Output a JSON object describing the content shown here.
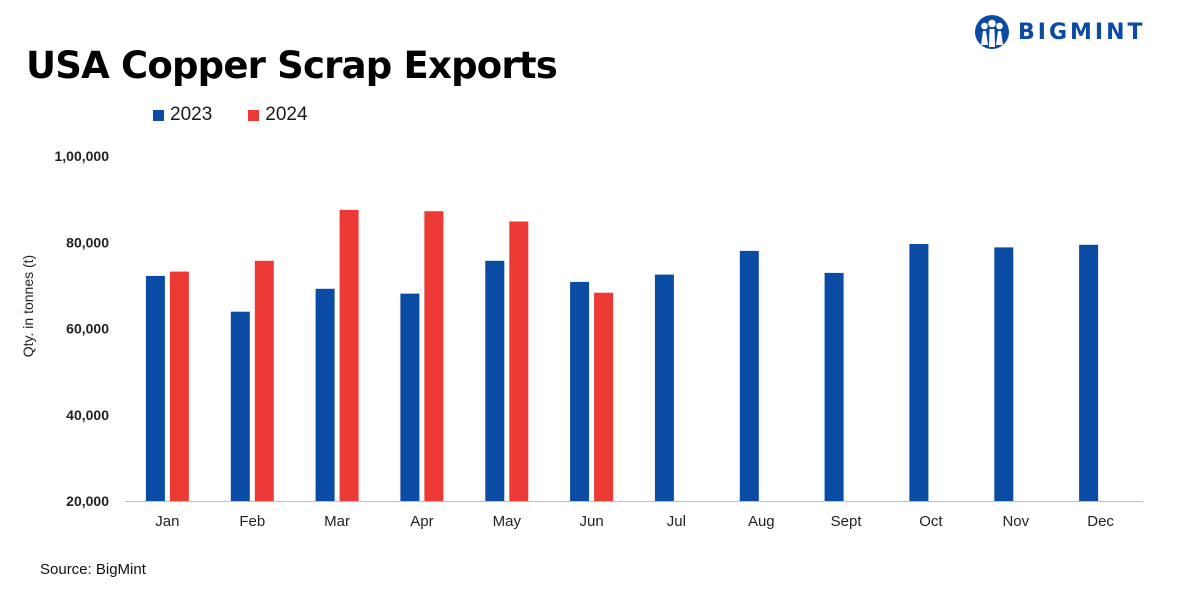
{
  "header": {
    "title": "USA Copper Scrap Exports",
    "logo_text": "BIGMINT",
    "logo_icon": "bigmint-logo-icon"
  },
  "footer": {
    "source": "Source: BigMint"
  },
  "colors": {
    "series_2023": "#0a4ba3",
    "series_2024": "#ee3a34",
    "axis": "#bfbfbf"
  },
  "chart_data": {
    "type": "bar",
    "title": "USA Copper Scrap Exports",
    "xlabel": "",
    "ylabel": "Qty. in tonnes (t)",
    "ylim": [
      20000,
      100000
    ],
    "yticks": [
      20000,
      40000,
      60000,
      80000,
      100000
    ],
    "ytick_labels": [
      "20,000",
      "40,000",
      "60,000",
      "80,000",
      "1,00,000"
    ],
    "grid": false,
    "legend_position": "top-left",
    "categories": [
      "Jan",
      "Feb",
      "Mar",
      "Apr",
      "May",
      "Jun",
      "Jul",
      "Aug",
      "Sept",
      "Oct",
      "Nov",
      "Dec"
    ],
    "series": [
      {
        "name": "2023",
        "color": "#0a4ba3",
        "values": [
          72200,
          63900,
          69200,
          68100,
          75700,
          70800,
          72500,
          78000,
          72900,
          79600,
          78800,
          79400
        ]
      },
      {
        "name": "2024",
        "color": "#ee3a34",
        "values": [
          73200,
          75700,
          87500,
          87200,
          84800,
          68300,
          null,
          null,
          null,
          null,
          null,
          null
        ]
      }
    ]
  }
}
